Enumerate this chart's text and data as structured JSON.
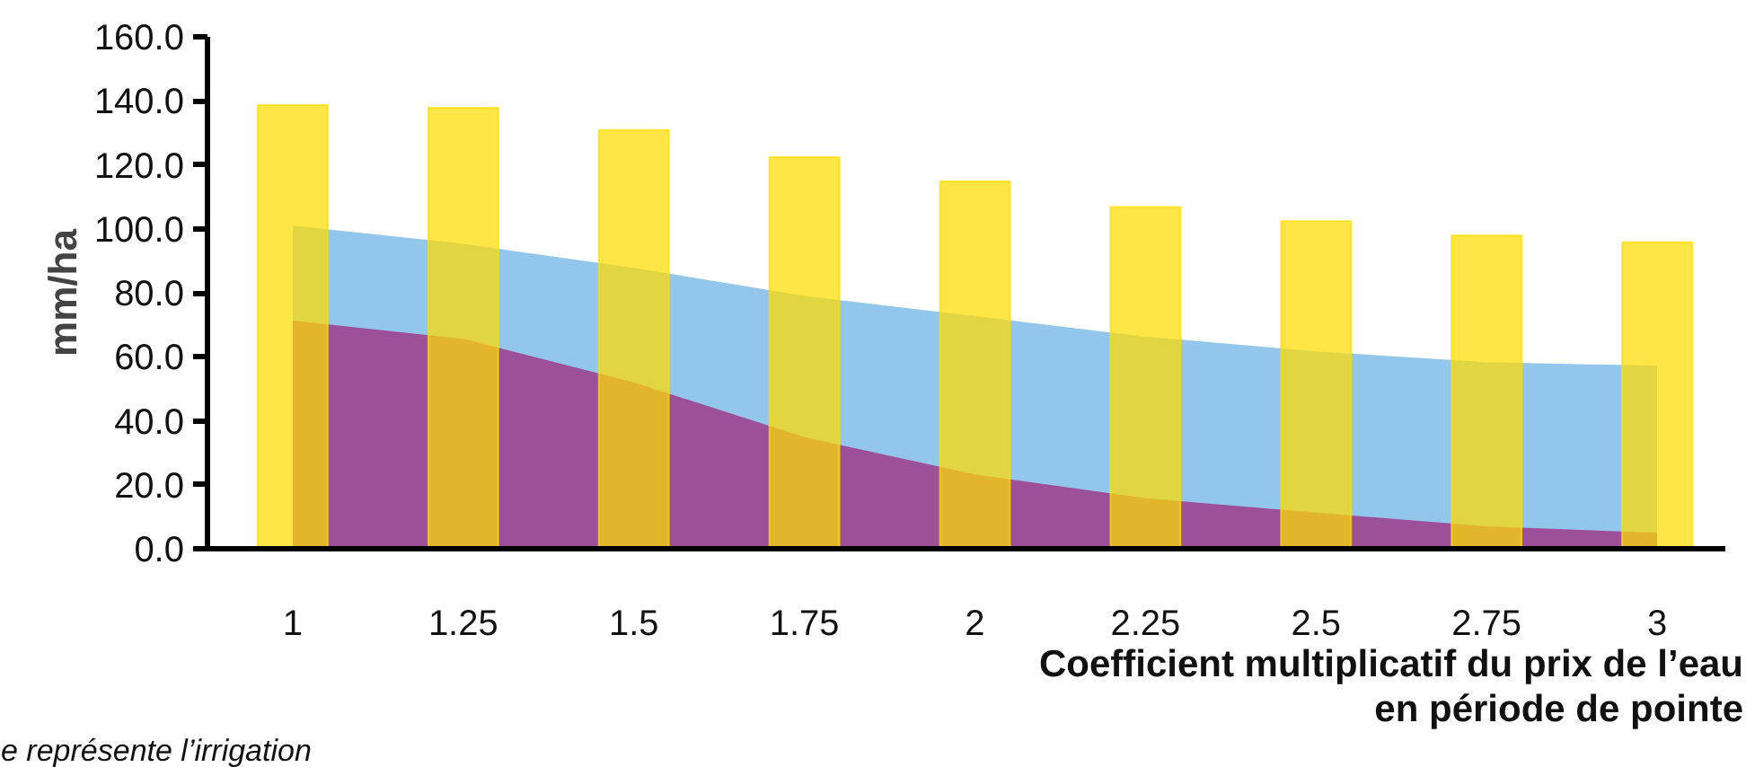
{
  "chart_data": {
    "type": "bar",
    "categories": [
      "1",
      "1.25",
      "1.5",
      "1.75",
      "2",
      "2.25",
      "2.5",
      "2.75",
      "3"
    ],
    "xlabel": "Coefficient multiplicatif du prix de l’eau\nen période de pointe",
    "ylabel": "mm/ha",
    "series": [
      {
        "type": "area",
        "color": "#93c6eb",
        "values": [
          101,
          95.3,
          87.8,
          79,
          72.7,
          66.3,
          61.7,
          58.3,
          57.2
        ]
      },
      {
        "type": "area",
        "color": "#9b5098",
        "values": [
          71.3,
          65.6,
          52,
          34.9,
          23.2,
          15.8,
          11.3,
          7,
          5
        ]
      },
      {
        "color": "#ffdd00",
        "values": [
          138.7,
          137.8,
          130.9,
          122.4,
          114.8,
          106.8,
          102.4,
          97.9,
          95.8
        ]
      }
    ],
    "ylim": [
      0,
      160
    ],
    "yticks": [
      {
        "value": 0,
        "label": "0.0"
      },
      {
        "value": 20,
        "label": "20.0"
      },
      {
        "value": 40,
        "label": "40.0"
      },
      {
        "value": 60,
        "label": "60.0"
      },
      {
        "value": 80,
        "label": "80.0"
      },
      {
        "value": 100,
        "label": "100.0"
      },
      {
        "value": 120,
        "label": "120.0"
      },
      {
        "value": 140,
        "label": "140.0"
      },
      {
        "value": 160,
        "label": "160.0"
      }
    ],
    "grid": false,
    "annotations": [
      "e    représente    l’irrigation"
    ]
  }
}
